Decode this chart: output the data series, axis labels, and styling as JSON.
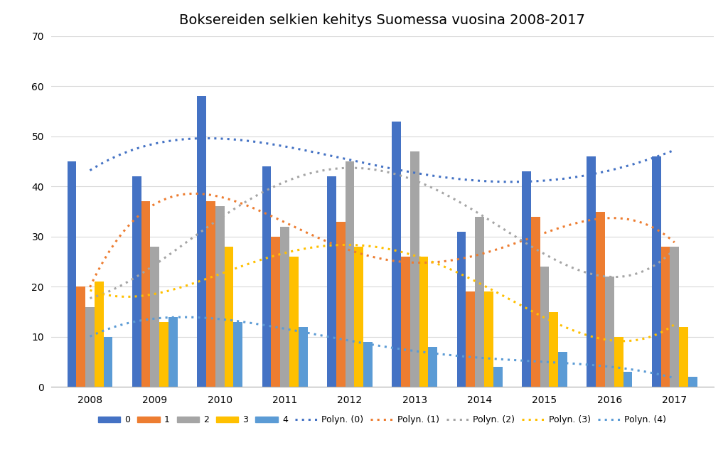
{
  "title": "Boksereiden selkien kehitys Suomessa vuosina 2008-2017",
  "years": [
    2008,
    2009,
    2010,
    2011,
    2012,
    2013,
    2014,
    2015,
    2016,
    2017
  ],
  "series": {
    "0": [
      45,
      42,
      58,
      44,
      42,
      53,
      31,
      43,
      46,
      46
    ],
    "1": [
      20,
      37,
      37,
      30,
      33,
      26,
      19,
      34,
      35,
      28
    ],
    "2": [
      16,
      28,
      36,
      32,
      45,
      47,
      34,
      24,
      22,
      28
    ],
    "3": [
      21,
      13,
      28,
      26,
      28,
      26,
      19,
      15,
      10,
      12
    ],
    "4": [
      10,
      14,
      13,
      12,
      9,
      8,
      4,
      7,
      3,
      2
    ]
  },
  "colors": {
    "0": "#4472C4",
    "1": "#ED7D31",
    "2": "#A5A5A5",
    "3": "#FFC000",
    "4": "#5B9BD5"
  },
  "poly_colors": {
    "0": "#4472C4",
    "1": "#ED7D31",
    "2": "#A5A5A5",
    "3": "#FFC000",
    "4": "#5B9BD5"
  },
  "ylim": [
    0,
    70
  ],
  "yticks": [
    0,
    10,
    20,
    30,
    40,
    50,
    60,
    70
  ],
  "bar_width": 0.14,
  "poly_degree": 4,
  "background_color": "#FFFFFF",
  "grid_color": "#D9D9D9",
  "title_fontsize": 14,
  "axis_fontsize": 10,
  "legend_fontsize": 9
}
